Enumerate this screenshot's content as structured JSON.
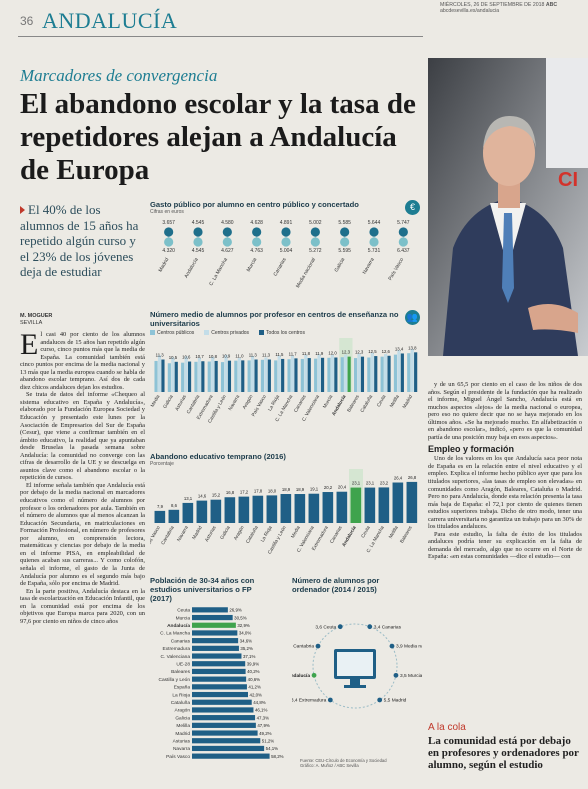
{
  "header": {
    "page": "36",
    "section": "ANDALUCÍA",
    "date": "MIÉRCOLES, 26 DE SEPTIEMBRE DE 2018",
    "paper": "ABC",
    "web": "abcdesevilla.es/andalucia"
  },
  "kicker": "Marcadores de convergencia",
  "headline": "El abandono escolar y la tasa de repetidores alejan a Andalucía de Europa",
  "highlight": "El 40% de los alumnos de 15 años ha repetido algún curso y el 23% de los jóvenes deja de estudiar",
  "byline": {
    "author": "M. MOGUER",
    "place": "SEVILLA"
  },
  "body_left": {
    "dropcap": "E",
    "paragraphs": [
      "l casi 40 por ciento de los alumnos andaluces de 15 años han repetido algún curso, cinco puntos más que la media de España. La comunidad también está cinco puntos por encima de la media nacional y 13 más que la media europea cuando se habla de abandono escolar temprano. Así dos de cada diez chicos andaluces dejan los estudios.",
      "Se trata de datos del informe «Chequeo al sistema educativo en España y Andalucía», elaborado por la Fundación Europea Sociedad y Educación y presentado este lunes por la Asociación de Empresarios del Sur de España (Cesur), que viene a confirmar también en el ámbito educativo, la realidad que ya apuntaban desde Bruselas la pasada semana sobre Andalucía: la comunidad no converge con las cifras de desarrollo de la UE y se descuelga en asuntos clave como el abandono escolar o la repetición de cursos.",
      "El informe señala también que Andalucía está por debajo de la media nacional en marcadores educativos como el número de alumnos por profesor o los ordenadores por aula. También en el número de alumnos que al menos alcanzan la Educación Secundaria, en matriculaciones en Formación Profesional, en número de profesores por alumno, en comprensión lectora, matemáticas y ciencias por debajo de la media en el informe PISA, en empleabilidad de quienes acaban sus carreras... Y como colofón, señala el informe, el gasto de la Junta de Andalucía por alumno es el segundo más bajo de España, sólo por encima de Madrid.",
      "En la parte positiva, Andalucía destaca en la tasa de escolarización en Educación Infantil, que en la comunidad está por encima de los objetivos que Europa marca para 2020, con un 97,6 por ciento en niños de cinco años"
    ]
  },
  "body_right": {
    "paragraphs": [
      "y de un 65,5 por ciento en el caso de los niños de dos años. Según el presidente de la fundación que ha realizado el informe, Miguel Ángel Sancho, Andalucía está en muchos aspectos «lejos» de la media nacional o europea, pero eso no quiere decir que no se haya mejorado en los últimos años. «Se ha mejorado mucho. En alfabetización o en abandono escolar», indicó, «pero es que la comunidad partía de una posición muy baja en esos aspectos»."
    ],
    "subhead": "Empleo y formación",
    "paragraphs_after": [
      "Uno de los valores en los que Andalucía saca peor nota de España es en la relación entre el nivel educativo y el empleo. Explica el informe hecho público ayer que para los titulados superiores, «las tasas de empleo son elevadas» en comunidades como Aragón, Baleares, Cataluña o Madrid. Pero no para Andalucía, donde esta relación presenta la tasa más baja de España: el 72,1 por ciento de quienes tienen estudios superiores trabaja. Dicho de otro modo, tener una carrera universitaria no garantiza un trabajo para un 30% de los titulados andaluces.",
      "Para este estudio, la falta de éxito de los titulados andaluces podría tener su explicación en la falta de demanda del mercado, algo que no ocurre en el Norte de España: «en estas comunidades —dice el estudio— con"
    ]
  },
  "sidebar": {
    "kicker": "A la cola",
    "text": "La comunidad está por debajo en profesores y ordenadores por alumno, según el estudio"
  },
  "chart_data": [
    {
      "type": "dot",
      "title": "Gasto público por alumno en centro público y concertado",
      "subtitle": "Cifras en euros",
      "icon": "€",
      "categories": [
        "Madrid",
        "Andalucía",
        "C. La Mancha",
        "Murcia",
        "Canarias",
        "Media nacional",
        "Galicia",
        "Navarra",
        "País Vasco"
      ],
      "series": [
        {
          "color": "#1f6f8b",
          "values": [
            3657,
            4545,
            4580,
            4628,
            4891,
            5002,
            5585,
            5644,
            5747
          ],
          "value_labels": [
            "3.657",
            "4.545",
            "4.580",
            "4.628",
            "4.891",
            "5.002",
            "5.585",
            "5.644",
            "5.747"
          ]
        },
        {
          "color": "#7cc0c9",
          "values": [
            4320,
            4545,
            4627,
            4763,
            5004,
            5272,
            5595,
            5731,
            6437
          ],
          "value_labels": [
            "4.320",
            "4.545",
            "4.627",
            "4.763",
            "5.004",
            "5.272",
            "5.595",
            "5.731",
            "6.437"
          ]
        }
      ]
    },
    {
      "type": "bar",
      "title": "Número medio de alumnos por profesor en centros de enseñanza no universitarios",
      "icon": "👥",
      "categories": [
        "Media",
        "Galicia",
        "Asturias",
        "Cantabria",
        "Extremadura",
        "Castilla y León",
        "Navarra",
        "Aragón",
        "País Vasco",
        "La Rioja",
        "C. La Mancha",
        "Canarias",
        "C. Valenciana",
        "Murcia",
        "Andalucía",
        "Baleares",
        "Cataluña",
        "Ceuta",
        "Melilla",
        "Madrid"
      ],
      "highlight": "Andalucía",
      "ylim": [
        0,
        16
      ],
      "series": [
        {
          "name": "Centros públicos",
          "color": "#8ec3d6",
          "values": [
            10.8,
            10.0,
            10.2,
            10.5,
            10.6,
            10.4,
            10.9,
            11.0,
            11.2,
            11.0,
            11.4,
            11.5,
            11.6,
            11.9,
            12.1,
            11.8,
            12.0,
            12.3,
            13.0,
            13.5
          ]
        },
        {
          "name": "Centros privados",
          "color": "#c3dde8",
          "values": [
            12.8,
            12.0,
            12.4,
            11.9,
            12.2,
            12.9,
            11.8,
            12.5,
            12.0,
            12.7,
            12.6,
            12.9,
            13.1,
            12.9,
            13.0,
            13.3,
            13.6,
            13.2,
            14.5,
            14.9
          ]
        },
        {
          "name": "Todos los centros",
          "color": "#1f5f86",
          "values": [
            11.3,
            10.5,
            10.6,
            10.7,
            10.8,
            10.9,
            11.0,
            11.3,
            11.3,
            11.5,
            11.7,
            11.8,
            11.9,
            12.0,
            12.3,
            12.3,
            12.5,
            12.6,
            13.4,
            13.8
          ],
          "value_labels": [
            "11,3",
            "10,5",
            "10,6",
            "10,7",
            "10,8",
            "10,9",
            "11,0",
            "11,3",
            "11,3",
            "11,5",
            "11,7",
            "11,8",
            "11,9",
            "12,0",
            "12,3",
            "12,3",
            "12,5",
            "12,6",
            "13,4",
            "13,8"
          ]
        }
      ]
    },
    {
      "type": "bar",
      "title": "Abandono educativo temprano (2016)",
      "subtitle": "Porcentaje",
      "categories": [
        "País Vasco",
        "Cantabria",
        "Navarra",
        "Madrid",
        "Asturias",
        "Galicia",
        "Aragón",
        "Cataluña",
        "La Rioja",
        "Castilla y León",
        "Media",
        "C. Valenciana",
        "Extremadura",
        "Canarias",
        "Andalucía",
        "Ceuta",
        "C. La Mancha",
        "Melilla",
        "Baleares"
      ],
      "highlight": "Andalucía",
      "ylim": [
        0,
        30
      ],
      "series": [
        {
          "color": "#1f5f86",
          "values": [
            7.9,
            8.6,
            13.1,
            14.6,
            15.2,
            16.8,
            17.2,
            17.8,
            18.0,
            18.9,
            18.9,
            19.1,
            20.2,
            20.4,
            23.1,
            23.1,
            23.2,
            26.4,
            26.8
          ],
          "value_labels": [
            "7,9",
            "8,6",
            "13,1",
            "14,6",
            "15,2",
            "16,8",
            "17,2",
            "17,8",
            "18,0",
            "18,9",
            "18,9",
            "19,1",
            "20,2",
            "20,4",
            "23,1",
            "23,1",
            "23,2",
            "26,4",
            "26,8"
          ]
        }
      ]
    },
    {
      "type": "hbar",
      "title": "Población de 30-34 años con estudios universitarios o FP (2017)",
      "categories": [
        "Ceuta",
        "Murcia",
        "Andalucía",
        "C. La Mancha",
        "Canarias",
        "Extremadura",
        "C. Valenciana",
        "UE-28",
        "Baleares",
        "Castilla y León",
        "España",
        "La Rioja",
        "Cataluña",
        "Aragón",
        "Galicia",
        "Melilla",
        "Madrid",
        "Asturias",
        "Navarra",
        "País Vasco"
      ],
      "highlight": "Andalucía",
      "xlim": [
        0,
        60
      ],
      "series": [
        {
          "color": "#1f5f86",
          "values": [
            26.9,
            30.5,
            32.9,
            34.0,
            34.6,
            35.2,
            37.1,
            39.9,
            40.2,
            40.6,
            41.2,
            42.0,
            44.8,
            46.1,
            47.3,
            47.9,
            49.2,
            51.2,
            54.1,
            58.2
          ],
          "value_labels": [
            "26,9%",
            "30,5%",
            "32,9%",
            "34,0%",
            "34,6%",
            "35,2%",
            "37,1%",
            "39,9%",
            "40,2%",
            "40,6%",
            "41,2%",
            "42,0%",
            "44,8%",
            "46,1%",
            "47,3%",
            "47,9%",
            "49,2%",
            "51,2%",
            "54,1%",
            "58,2%"
          ]
        }
      ]
    },
    {
      "type": "pictogram",
      "title": "Número de alumnos por ordenador (2014 / 2015)",
      "categories": [
        "Extremadura",
        "Andalucía",
        "Cantabria",
        "Ceuta",
        "Canarias",
        "Media nacional",
        "Murcia",
        "Madrid"
      ],
      "highlight": "Andalucía",
      "values": [
        3.4,
        3.1,
        3.5,
        3.6,
        3.4,
        3.9,
        3.5,
        5.5
      ],
      "value_labels": [
        "3,4",
        "3,1",
        "3,5",
        "3,6",
        "3,4",
        "3,9",
        "3,5",
        "5,5"
      ],
      "color": "#1f5f86"
    }
  ],
  "source": "Fuente: CEU-Círculo de Economía y Sociedad",
  "credit": "Gráfico: A. Muñoz / ABC Sevilla"
}
